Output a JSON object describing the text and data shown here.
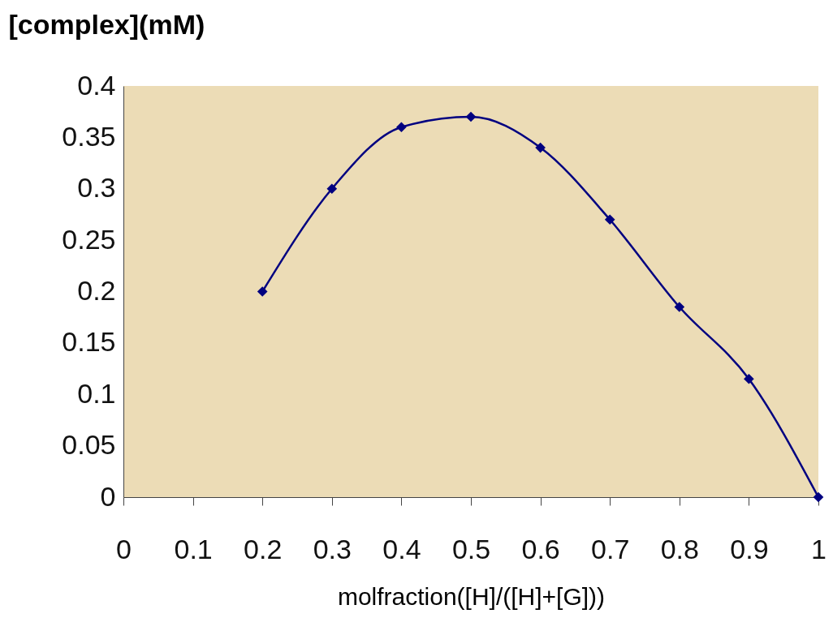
{
  "chart_data": {
    "type": "line",
    "xlabel": "molfraction([H]/([H]+[G]))",
    "ylabel": "[complex](mM)",
    "x": [
      0.2,
      0.3,
      0.4,
      0.5,
      0.6,
      0.7,
      0.8,
      0.9,
      1.0
    ],
    "series": [
      {
        "color": "#000080",
        "values": [
          0.2,
          0.3,
          0.36,
          0.37,
          0.34,
          0.27,
          0.185,
          0.115,
          0
        ]
      }
    ],
    "xlim": [
      0,
      1
    ],
    "xticks": [
      0,
      0.1,
      0.2,
      0.3,
      0.4,
      0.5,
      0.6,
      0.7,
      0.8,
      0.9,
      1
    ],
    "ylim": [
      0,
      0.4
    ],
    "yticks": [
      0,
      0.05,
      0.1,
      0.15,
      0.2,
      0.25,
      0.3,
      0.35,
      0.4
    ],
    "grid": false,
    "marker": "diamond",
    "line_style": "solid"
  }
}
